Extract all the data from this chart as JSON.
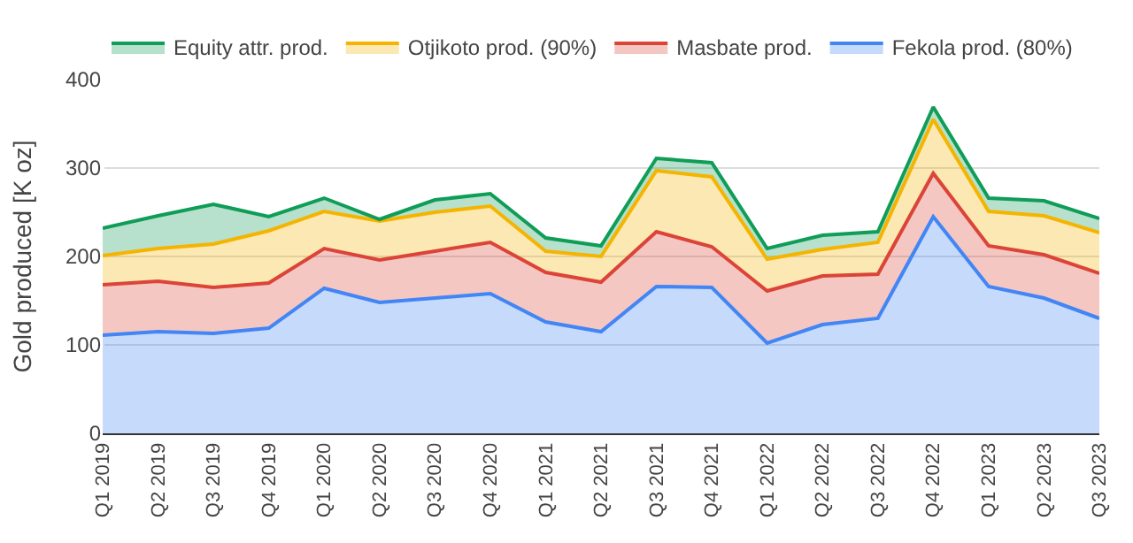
{
  "chart_data": {
    "type": "area",
    "stacked": true,
    "ylabel": "Gold produced [K oz]",
    "categories": [
      "Q1 2019",
      "Q2 2019",
      "Q3 2019",
      "Q4 2019",
      "Q1 2020",
      "Q2 2020",
      "Q3 2020",
      "Q4 2020",
      "Q1 2021",
      "Q2 2021",
      "Q3 2021",
      "Q4 2021",
      "Q1 2022",
      "Q2 2022",
      "Q3 2022",
      "Q4 2022",
      "Q1 2023",
      "Q2 2023",
      "Q3 2023"
    ],
    "series": [
      {
        "name": "Fekola prod. (80%)",
        "color": "#4285f4",
        "values": [
          111,
          115,
          113,
          119,
          164,
          148,
          153,
          158,
          126,
          115,
          166,
          165,
          102,
          123,
          130,
          245,
          166,
          153,
          130
        ]
      },
      {
        "name": "Masbate prod.",
        "color": "#db4437",
        "values": [
          57,
          57,
          52,
          51,
          45,
          48,
          53,
          58,
          56,
          56,
          62,
          46,
          59,
          55,
          50,
          49,
          46,
          49,
          51
        ]
      },
      {
        "name": "Otjikoto prod. (90%)",
        "color": "#f4b400",
        "values": [
          33,
          37,
          49,
          59,
          42,
          44,
          44,
          41,
          24,
          29,
          69,
          79,
          36,
          30,
          36,
          61,
          39,
          44,
          46
        ]
      },
      {
        "name": "Equity attr. prod.",
        "color": "#0f9d58",
        "values": [
          31,
          37,
          45,
          16,
          15,
          2,
          14,
          14,
          15,
          12,
          14,
          16,
          12,
          16,
          12,
          14,
          15,
          17,
          16
        ]
      }
    ],
    "ylim": [
      0,
      400
    ],
    "yticks": [
      0,
      100,
      200,
      300,
      400
    ],
    "grid": "y",
    "legend": "top"
  }
}
